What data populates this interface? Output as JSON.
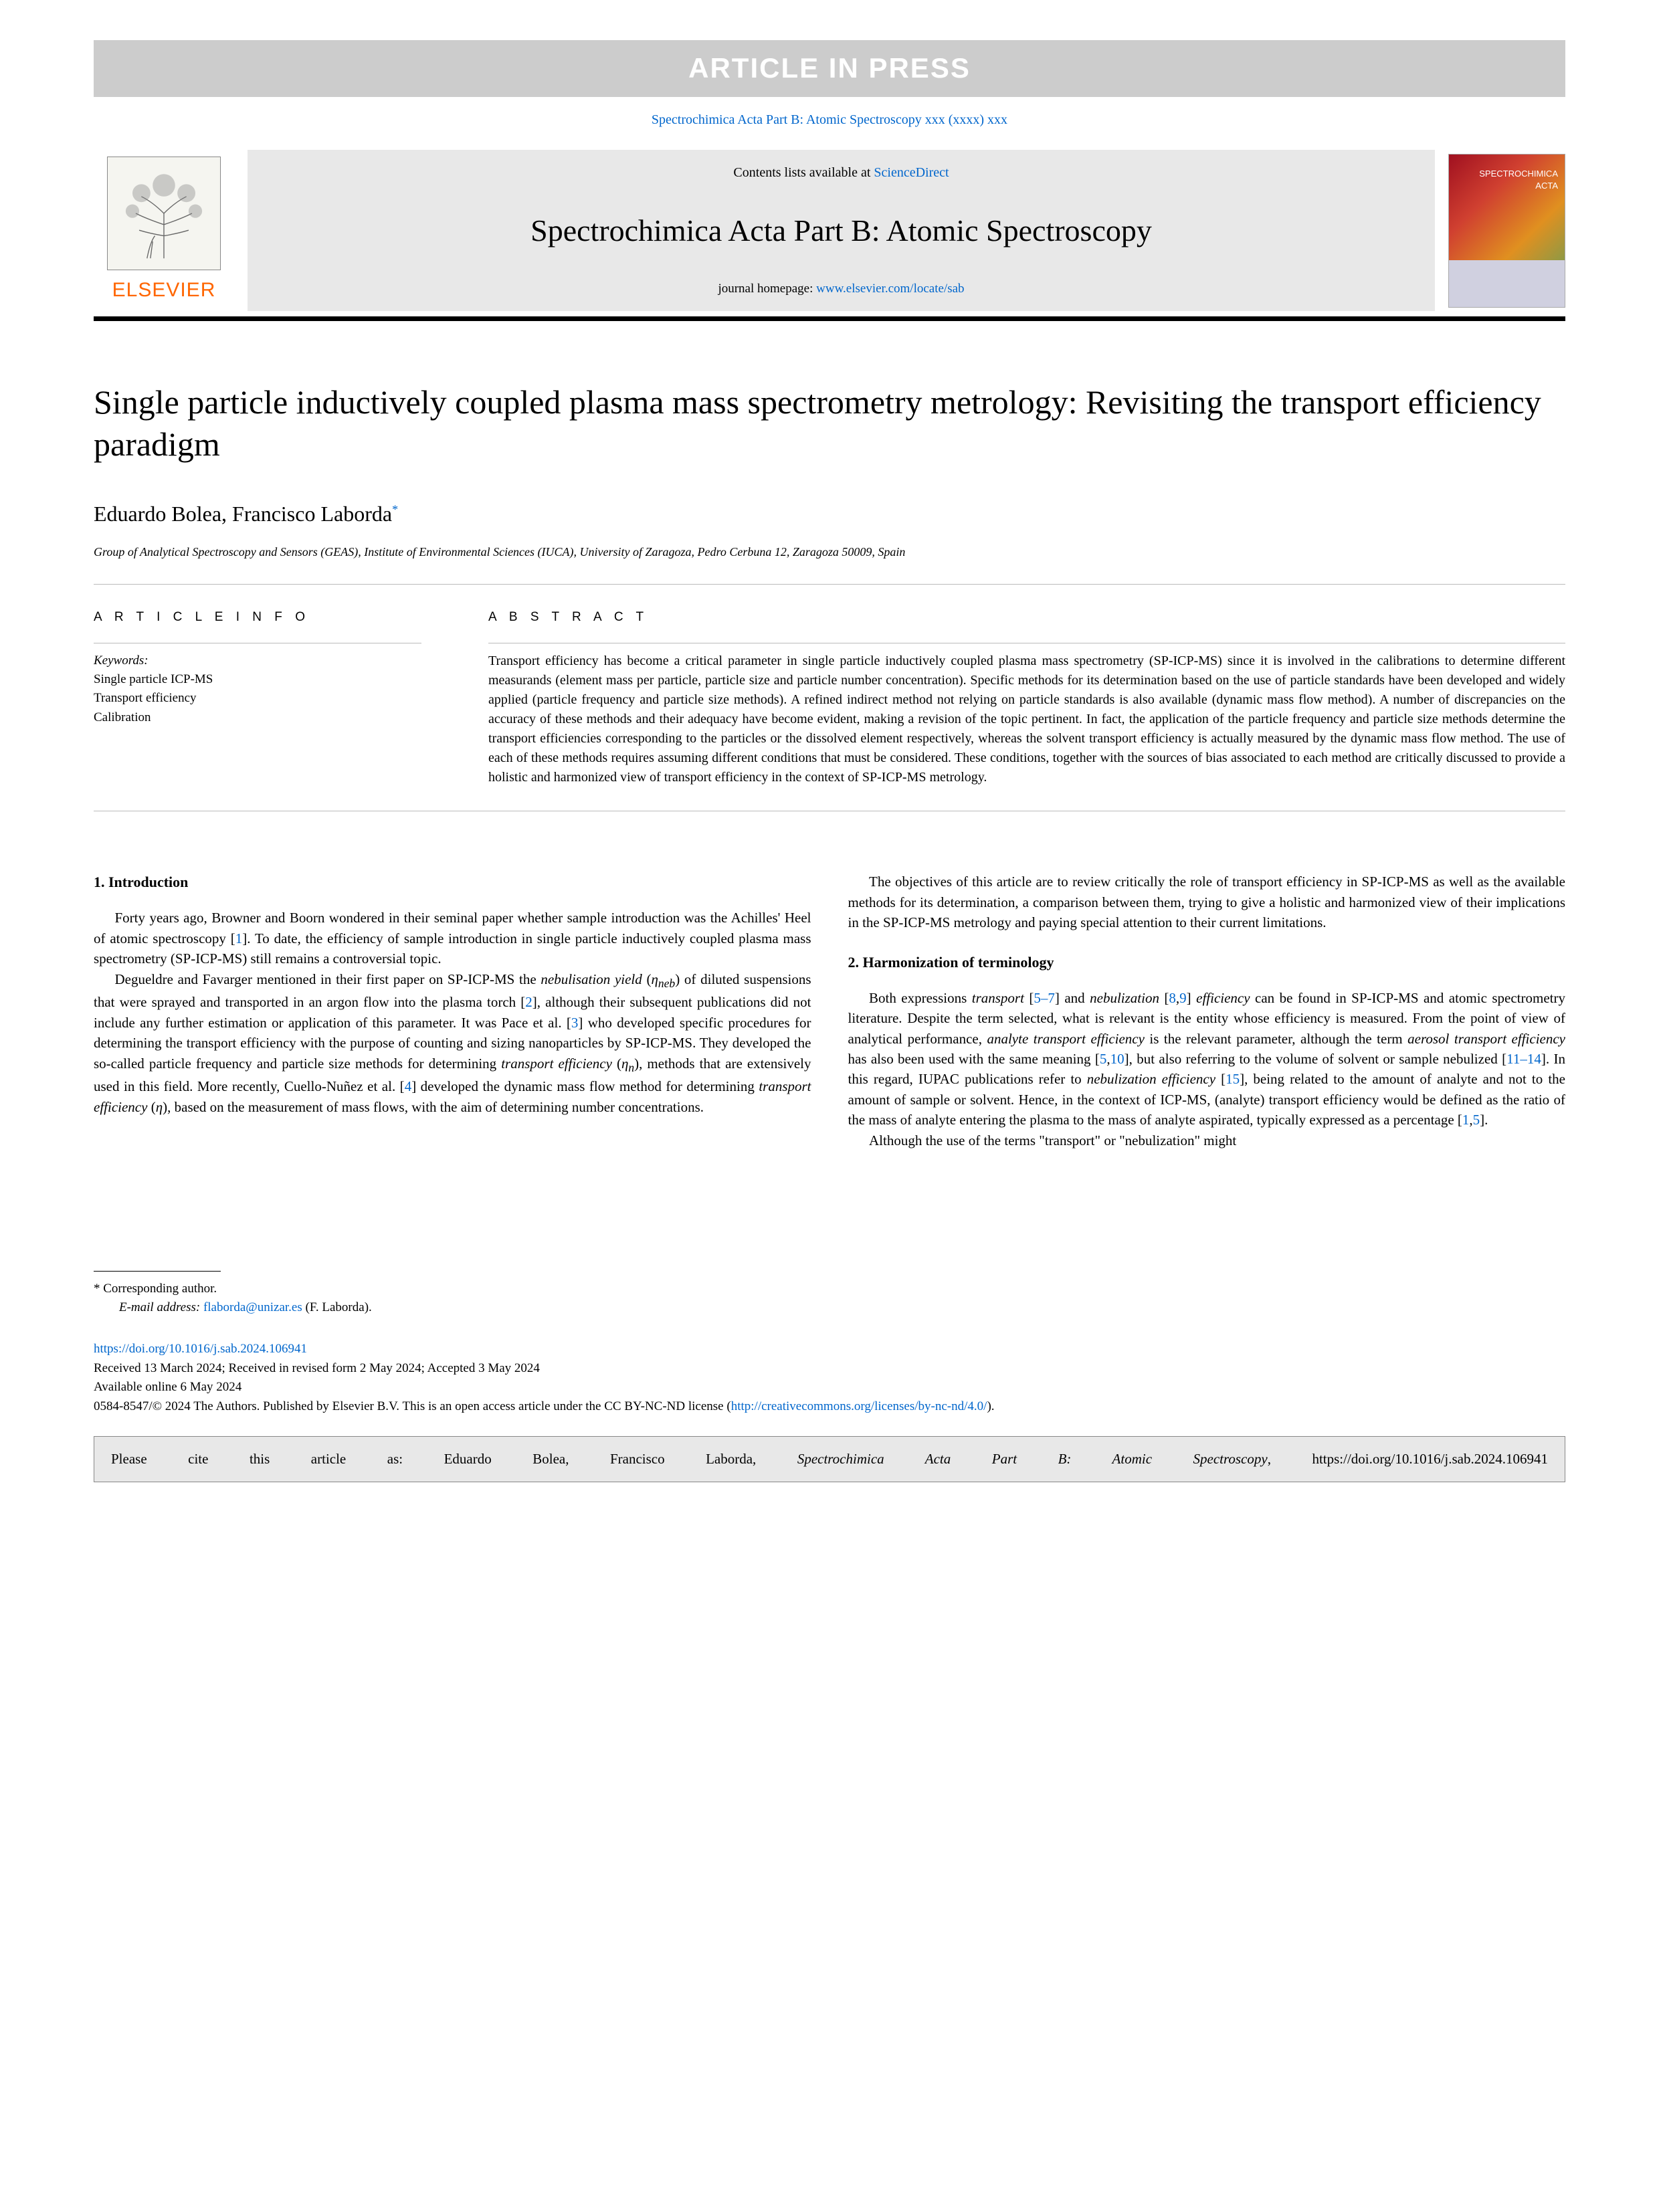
{
  "pressBanner": "ARTICLE IN PRESS",
  "citationTop": {
    "journalShort": "Spectrochimica Acta Part B: Atomic Spectroscopy",
    "volInfo": " xxx (xxxx) xxx"
  },
  "header": {
    "contentsPrefix": "Contents lists available at ",
    "contentsLink": "ScienceDirect",
    "journalName": "Spectrochimica Acta Part B: Atomic Spectroscopy",
    "homepagePrefix": "journal homepage: ",
    "homepageUrl": "www.elsevier.com/locate/sab",
    "elsevier": "ELSEVIER",
    "coverTitle": "SPECTROCHIMICA\nACTA"
  },
  "title": "Single particle inductively coupled plasma mass spectrometry metrology: Revisiting the transport efficiency paradigm",
  "authors": {
    "a1": "Eduardo Bolea",
    "sep": ", ",
    "a2": "Francisco Laborda",
    "corr": "*"
  },
  "affiliation": "Group of Analytical Spectroscopy and Sensors (GEAS), Institute of Environmental Sciences (IUCA), University of Zaragoza, Pedro Cerbuna 12, Zaragoza 50009, Spain",
  "labels": {
    "articleInfo": "A R T I C L E  I N F O",
    "abstract": "A B S T R A C T",
    "keywords": "Keywords:"
  },
  "keywords": [
    "Single particle ICP-MS",
    "Transport efficiency",
    "Calibration"
  ],
  "abstractText": "Transport efficiency has become a critical parameter in single particle inductively coupled plasma mass spectrometry (SP-ICP-MS) since it is involved in the calibrations to determine different measurands (element mass per particle, particle size and particle number concentration). Specific methods for its determination based on the use of particle standards have been developed and widely applied (particle frequency and particle size methods). A refined indirect method not relying on particle standards is also available (dynamic mass flow method). A number of discrepancies on the accuracy of these methods and their adequacy have become evident, making a revision of the topic pertinent. In fact, the application of the particle frequency and particle size methods determine the transport efficiencies corresponding to the particles or the dissolved element respectively, whereas the solvent transport efficiency is actually measured by the dynamic mass flow method. The use of each of these methods requires assuming different conditions that must be considered. These conditions, together with the sources of bias associated to each method are critically discussed to provide a holistic and harmonized view of transport efficiency in the context of SP-ICP-MS metrology.",
  "section1": {
    "heading": "1.  Introduction",
    "p1a": "Forty years ago, Browner and Boorn wondered in their seminal paper whether sample introduction was the Achilles' Heel of atomic spectroscopy [",
    "p1b": "]. To date, the efficiency of sample introduction in single particle inductively coupled plasma mass spectrometry (SP-ICP-MS) still remains a controversial topic.",
    "p2": "Degueldre and Favarger mentioned in their first paper on SP-ICP-MS the <i>nebulisation yield</i> (<i>η<sub>neb</sub></i>) of diluted suspensions that were sprayed and transported in an argon flow into the plasma torch [<a class='ref'>2</a>], although their subsequent publications did not include any further estimation or application of this parameter. It was Pace et al. [<a class='ref'>3</a>] who developed specific procedures for determining the transport efficiency with the purpose of counting and sizing nanoparticles by SP-ICP-MS. They developed the so-called particle frequency and particle size methods for determining <i>transport efficiency</i> (<i>η<sub>n</sub></i>), methods that are extensively used in this field. More recently, Cuello-Nuñez et al. [<a class='ref'>4</a>] developed the dynamic mass flow method for determining <i>transport efficiency</i> (<i>η</i>), based on the measurement of mass flows, with the aim of determining number concentrations.",
    "p3": "The objectives of this article are to review critically the role of transport efficiency in SP-ICP-MS as well as the available methods for its determination, a comparison between them, trying to give a holistic and harmonized view of their implications in the SP-ICP-MS metrology and paying special attention to their current limitations."
  },
  "section2": {
    "heading": "2.  Harmonization of terminology",
    "p1": "Both expressions <i>transport</i> [<a class='ref'>5–7</a>] and <i>nebulization</i> [<a class='ref'>8</a>,<a class='ref'>9</a>] <i>efficiency</i> can be found in SP-ICP-MS and atomic spectrometry literature. Despite the term selected, what is relevant is the entity whose efficiency is measured. From the point of view of analytical performance, <i>analyte transport efficiency</i> is the relevant parameter, although the term <i>aerosol transport efficiency</i> has also been used with the same meaning [<a class='ref'>5</a>,<a class='ref'>10</a>], but also referring to the volume of solvent or sample nebulized [<a class='ref'>11–14</a>]. In this regard, IUPAC publications refer to <i>nebulization efficiency</i> [<a class='ref'>15</a>], being related to the amount of analyte and not to the amount of sample or solvent. Hence, in the context of ICP-MS, (analyte) transport efficiency would be defined as the ratio of the mass of analyte entering the plasma to the mass of analyte aspirated, typically expressed as a percentage [<a class='ref'>1</a>,<a class='ref'>5</a>].",
    "p2": "Although the use of the terms \"transport\" or \"nebulization\" might"
  },
  "footnote": {
    "corr": "* Corresponding author.",
    "emailLabel": "E-mail address: ",
    "email": "flaborda@unizar.es",
    "emailSuffix": " (F. Laborda)."
  },
  "footer": {
    "doi": "https://doi.org/10.1016/j.sab.2024.106941",
    "received": "Received 13 March 2024; Received in revised form 2 May 2024; Accepted 3 May 2024",
    "available": "Available online 6 May 2024",
    "copyright1": "0584-8547/© 2024 The Authors. Published by Elsevier B.V. This is an open access article under the CC BY-NC-ND license (",
    "ccLink": "http://creativecommons.org/licenses/by-nc-nd/4.0/",
    "copyright2": ")."
  },
  "citeBox": {
    "text1": "Please cite this article as: Eduardo Bolea, Francisco Laborda, ",
    "ital": "Spectrochimica Acta Part B: Atomic Spectroscopy",
    "text2": ", https://doi.org/10.1016/j.sab.2024.106941"
  },
  "colors": {
    "link": "#0066cc",
    "elsevier": "#ff6600",
    "banner": "#cccccc"
  }
}
